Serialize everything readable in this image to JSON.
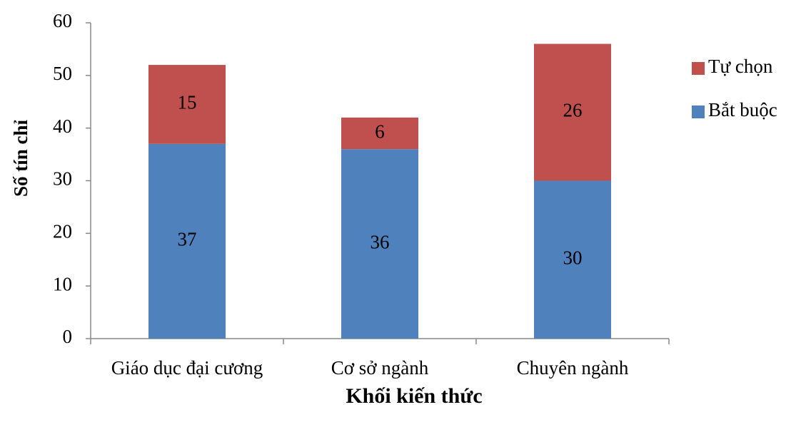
{
  "chart_data": {
    "type": "bar",
    "stacked": true,
    "x_label": "Khối kiến thức",
    "y_label": "Số tín chỉ",
    "categories": [
      "Giáo dục đại cương",
      "Cơ sở ngành",
      "Chuyên ngành"
    ],
    "series": [
      {
        "name": "Bắt buộc",
        "color": "#4f81bd",
        "values": [
          37,
          36,
          30
        ]
      },
      {
        "name": "Tự chọn",
        "color": "#c0504d",
        "values": [
          15,
          6,
          26
        ]
      }
    ],
    "ylim": [
      0,
      60
    ],
    "yticks": [
      0,
      10,
      20,
      30,
      40,
      50,
      60
    ],
    "legend": "right",
    "data_labels": true
  }
}
